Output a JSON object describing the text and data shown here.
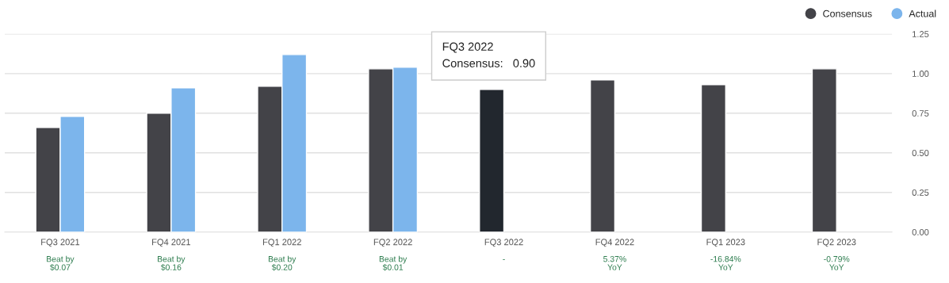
{
  "chart_data": {
    "type": "bar",
    "categories": [
      "FQ3 2021",
      "FQ4 2021",
      "FQ1 2022",
      "FQ2 2022",
      "FQ3 2022",
      "FQ4 2022",
      "FQ1 2023",
      "FQ2 2023"
    ],
    "series": [
      {
        "name": "Consensus",
        "color": "#434348",
        "colors": [
          "#434348",
          "#434348",
          "#434348",
          "#434348",
          "#22272e",
          "#434348",
          "#434348",
          "#434348"
        ],
        "values": [
          0.66,
          0.75,
          0.92,
          1.03,
          0.9,
          0.96,
          0.93,
          1.03
        ]
      },
      {
        "name": "Actual",
        "color": "#7cb5ec",
        "values": [
          0.73,
          0.91,
          1.12,
          1.04,
          null,
          null,
          null,
          null
        ]
      }
    ],
    "ylim": [
      0,
      1.25
    ],
    "yticks": [
      {
        "value": 0,
        "label": "0.00"
      },
      {
        "value": 0.25,
        "label": "0.25"
      },
      {
        "value": 0.5,
        "label": "0.50"
      },
      {
        "value": 0.75,
        "label": "0.75"
      },
      {
        "value": 1.0,
        "label": "1.00"
      },
      {
        "value": 1.25,
        "label": "1.25"
      }
    ],
    "grid": "y",
    "legend": "top right",
    "annotations": [
      {
        "text": "FQ3 2022\nConsensus:   0.90",
        "x": "FQ3 2022",
        "y": 0.9
      },
      "Beat by\n$0.07",
      "Beat by\n$0.16",
      "Beat by\n$0.20",
      "Beat by\n$0.01",
      "-",
      "5.37%\nYoY",
      "-16.84%\nYoY",
      "-0.79%\nYoY"
    ]
  }
}
